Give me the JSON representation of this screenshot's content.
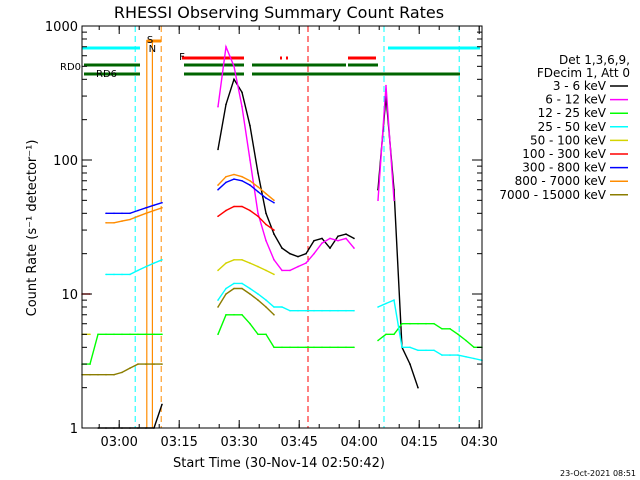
{
  "chart_data": {
    "type": "line",
    "title": "RHESSI Observing Summary Count Rates",
    "xlabel": "Start Time (30-Nov-14 02:50:42)",
    "ylabel": "Count Rate (s⁻¹ detector⁻¹)",
    "x_unit": "minutes since 02:50:42",
    "xlim": [
      0,
      100
    ],
    "x_ticks": [
      {
        "t": 9.3,
        "label": "03:00"
      },
      {
        "t": 24.3,
        "label": "03:15"
      },
      {
        "t": 39.3,
        "label": "03:30"
      },
      {
        "t": 54.3,
        "label": "03:45"
      },
      {
        "t": 69.3,
        "label": "04:00"
      },
      {
        "t": 84.3,
        "label": "04:15"
      },
      {
        "t": 99.3,
        "label": "04:30"
      }
    ],
    "y_scale": "log",
    "ylim": [
      1,
      1000
    ],
    "y_ticks": [
      {
        "v": 1,
        "label": "1"
      },
      {
        "v": 10,
        "label": "10"
      },
      {
        "v": 100,
        "label": "100"
      },
      {
        "v": 1000,
        "label": "1000"
      }
    ],
    "legend_placement": "right",
    "legend_header": [
      "Det 1,3,6,9,",
      "FDecim 1, Att 0"
    ],
    "series": [
      {
        "name": "3 - 6 keV",
        "color": "#000000",
        "x": [
          0,
          2,
          4,
          6,
          8,
          10,
          12,
          14,
          16,
          18,
          20,
          22,
          24,
          26,
          28,
          30,
          32,
          34,
          36,
          38,
          40,
          42,
          44,
          46,
          48,
          50,
          52,
          54,
          56,
          58,
          60,
          62,
          64,
          66,
          68,
          70,
          72,
          74,
          76,
          78,
          80,
          82,
          84,
          86,
          88,
          90,
          92,
          94,
          96,
          98,
          100
        ],
        "y": [
          null,
          null,
          1,
          1,
          1,
          1,
          1,
          1,
          1,
          1,
          1.5,
          null,
          null,
          null,
          null,
          null,
          null,
          120,
          260,
          400,
          320,
          180,
          80,
          40,
          28,
          22,
          20,
          19,
          20,
          25,
          26,
          22,
          27,
          28,
          26,
          null,
          null,
          60,
          300,
          60,
          4,
          3,
          2,
          null,
          null,
          null,
          null,
          null,
          null,
          null,
          null
        ]
      },
      {
        "name": "6 - 12 keV",
        "color": "#ff00ff",
        "x": [
          0,
          2,
          4,
          6,
          8,
          10,
          12,
          14,
          16,
          18,
          20,
          22,
          24,
          26,
          28,
          30,
          32,
          34,
          36,
          38,
          40,
          42,
          44,
          46,
          48,
          50,
          52,
          54,
          56,
          58,
          60,
          62,
          64,
          66,
          68,
          70,
          72,
          74,
          76,
          78,
          80,
          82,
          84,
          86,
          88,
          90,
          92,
          94,
          96,
          98,
          100
        ],
        "y": [
          null,
          null,
          null,
          null,
          null,
          null,
          null,
          null,
          null,
          null,
          null,
          null,
          null,
          null,
          null,
          null,
          null,
          250,
          700,
          500,
          250,
          100,
          40,
          25,
          18,
          15,
          15,
          16,
          17,
          20,
          24,
          26,
          25,
          26,
          22,
          null,
          null,
          50,
          360,
          50,
          null,
          null,
          null,
          null,
          null,
          null,
          null,
          null,
          null,
          null,
          null
        ]
      },
      {
        "name": "12 - 25 keV",
        "color": "#00ff00",
        "x": [
          0,
          2,
          4,
          6,
          8,
          10,
          12,
          14,
          16,
          18,
          20,
          22,
          24,
          26,
          28,
          30,
          32,
          34,
          36,
          38,
          40,
          42,
          44,
          46,
          48,
          50,
          52,
          54,
          56,
          58,
          60,
          62,
          64,
          66,
          68,
          70,
          72,
          74,
          76,
          78,
          80,
          82,
          84,
          86,
          88,
          90,
          92,
          94,
          96,
          98,
          100
        ],
        "y": [
          3,
          3,
          5,
          5,
          5,
          5,
          5,
          5,
          5,
          5,
          5,
          null,
          null,
          null,
          null,
          null,
          null,
          5,
          7,
          7,
          7,
          6,
          5,
          5,
          4,
          4,
          4,
          4,
          4,
          4,
          4,
          4,
          4,
          4,
          4,
          null,
          null,
          4.5,
          5,
          5,
          6,
          6,
          6,
          6,
          6,
          5.5,
          5.5,
          5,
          4.5,
          4,
          4
        ]
      },
      {
        "name": "25 - 50 keV",
        "color": "#00ffff",
        "x": [
          0,
          2,
          4,
          6,
          8,
          10,
          12,
          14,
          16,
          18,
          20,
          22,
          24,
          26,
          28,
          30,
          32,
          34,
          36,
          38,
          40,
          42,
          44,
          46,
          48,
          50,
          52,
          54,
          56,
          58,
          60,
          62,
          64,
          66,
          68,
          70,
          72,
          74,
          76,
          78,
          80,
          82,
          84,
          86,
          88,
          90,
          92,
          94,
          96,
          98,
          100
        ],
        "y": [
          null,
          null,
          null,
          14,
          14,
          14,
          14,
          15,
          16,
          17,
          18,
          null,
          null,
          null,
          null,
          null,
          null,
          9,
          11,
          12,
          12,
          11,
          10,
          9,
          8,
          8,
          7.5,
          7.5,
          7.5,
          7.5,
          7.5,
          7.5,
          7.5,
          7.5,
          7.5,
          null,
          null,
          8,
          8.5,
          9,
          4,
          4,
          3.8,
          3.8,
          3.8,
          3.5,
          3.5,
          3.5,
          3.4,
          3.3,
          3.2
        ]
      },
      {
        "name": "50 - 100 keV",
        "color": "#d4d400",
        "x": [
          0,
          2,
          4,
          6,
          8,
          10,
          12,
          14,
          16,
          18,
          20,
          22,
          24,
          26,
          28,
          30,
          32,
          34,
          36,
          38,
          40,
          42,
          44,
          46,
          48,
          50,
          52,
          54,
          56,
          58,
          60,
          62,
          64,
          66,
          68,
          70,
          72,
          74,
          76,
          78,
          80,
          82,
          84,
          86,
          88,
          90,
          92,
          94,
          96,
          98,
          100
        ],
        "y": [
          5,
          5,
          null,
          null,
          null,
          null,
          null,
          null,
          null,
          null,
          null,
          null,
          null,
          null,
          null,
          null,
          null,
          15,
          17,
          18,
          18,
          17,
          16,
          15,
          14,
          null,
          null,
          null,
          null,
          null,
          null,
          null,
          null,
          null,
          null,
          null,
          null,
          null,
          null,
          null,
          null,
          null,
          null,
          null,
          null,
          null,
          null,
          null,
          null,
          null,
          null
        ]
      },
      {
        "name": "100 - 300 keV",
        "color": "#ff0000",
        "x": [
          0,
          2,
          4,
          6,
          8,
          10,
          12,
          14,
          16,
          18,
          20,
          22,
          24,
          26,
          28,
          30,
          32,
          34,
          36,
          38,
          40,
          42,
          44,
          46,
          48,
          50,
          52,
          54,
          56,
          58,
          60,
          62,
          64,
          66,
          68,
          70,
          72,
          74,
          76,
          78,
          80,
          82,
          84,
          86,
          88,
          90,
          92,
          94,
          96,
          98,
          100
        ],
        "y": [
          10,
          10,
          null,
          null,
          null,
          null,
          null,
          null,
          null,
          null,
          null,
          null,
          null,
          null,
          null,
          null,
          null,
          38,
          42,
          45,
          45,
          42,
          38,
          33,
          30,
          null,
          null,
          null,
          null,
          null,
          null,
          null,
          null,
          null,
          null,
          null,
          null,
          null,
          null,
          null,
          null,
          null,
          null,
          null,
          null,
          null,
          null,
          null,
          null,
          null,
          null
        ]
      },
      {
        "name": "300 - 800 keV",
        "color": "#0000ff",
        "x": [
          0,
          2,
          4,
          6,
          8,
          10,
          12,
          14,
          16,
          18,
          20,
          22,
          24,
          26,
          28,
          30,
          32,
          34,
          36,
          38,
          40,
          42,
          44,
          46,
          48,
          50,
          52,
          54,
          56,
          58,
          60,
          62,
          64,
          66,
          68,
          70,
          72,
          74,
          76,
          78,
          80,
          82,
          84,
          86,
          88,
          90,
          92,
          94,
          96,
          98,
          100
        ],
        "y": [
          null,
          null,
          null,
          40,
          40,
          40,
          40,
          42,
          44,
          46,
          48,
          null,
          null,
          null,
          null,
          null,
          null,
          60,
          68,
          72,
          70,
          65,
          58,
          52,
          48,
          null,
          null,
          null,
          null,
          null,
          null,
          null,
          null,
          null,
          null,
          null,
          null,
          null,
          null,
          null,
          null,
          null,
          null,
          null,
          null,
          null,
          null,
          null,
          null,
          null,
          null
        ]
      },
      {
        "name": "800 - 7000 keV",
        "color": "#ff8c00",
        "x": [
          0,
          2,
          4,
          6,
          8,
          10,
          12,
          14,
          16,
          18,
          20,
          22,
          24,
          26,
          28,
          30,
          32,
          34,
          36,
          38,
          40,
          42,
          44,
          46,
          48,
          50,
          52,
          54,
          56,
          58,
          60,
          62,
          64,
          66,
          68,
          70,
          72,
          74,
          76,
          78,
          80,
          82,
          84,
          86,
          88,
          90,
          92,
          94,
          96,
          98,
          100
        ],
        "y": [
          null,
          null,
          null,
          34,
          34,
          35,
          36,
          38,
          40,
          42,
          44,
          null,
          null,
          null,
          null,
          null,
          null,
          65,
          75,
          78,
          75,
          70,
          63,
          56,
          50,
          null,
          null,
          null,
          null,
          null,
          null,
          null,
          null,
          null,
          null,
          null,
          null,
          null,
          null,
          null,
          null,
          null,
          null,
          null,
          null,
          null,
          null,
          null,
          null,
          null,
          null
        ]
      },
      {
        "name": "7000 - 15000 keV",
        "color": "#8b7d00",
        "x": [
          0,
          2,
          4,
          6,
          8,
          10,
          12,
          14,
          16,
          18,
          20,
          22,
          24,
          26,
          28,
          30,
          32,
          34,
          36,
          38,
          40,
          42,
          44,
          46,
          48,
          50,
          52,
          54,
          56,
          58,
          60,
          62,
          64,
          66,
          68,
          70,
          72,
          74,
          76,
          78,
          80,
          82,
          84,
          86,
          88,
          90,
          92,
          94,
          96,
          98,
          100
        ],
        "y": [
          2.5,
          2.5,
          2.5,
          2.5,
          2.5,
          2.6,
          2.8,
          3,
          3,
          3,
          3,
          null,
          null,
          null,
          null,
          null,
          null,
          8,
          10,
          11,
          11,
          10,
          9,
          8,
          7,
          null,
          null,
          null,
          null,
          null,
          null,
          null,
          null,
          null,
          null,
          null,
          null,
          null,
          null,
          null,
          null,
          null,
          null,
          null,
          null,
          null,
          null,
          null,
          null,
          null,
          null
        ]
      }
    ],
    "annotations": [
      {
        "label": "RD0",
        "color": "#006400"
      },
      {
        "label": "RD6",
        "color": "#006400"
      },
      {
        "label": "S",
        "color": "#ff8c00"
      },
      {
        "label": "N",
        "color": "#00ffff"
      },
      {
        "label": "F",
        "color": "#ff0000"
      }
    ],
    "timestamp": "23-Oct-2021 08:51"
  }
}
